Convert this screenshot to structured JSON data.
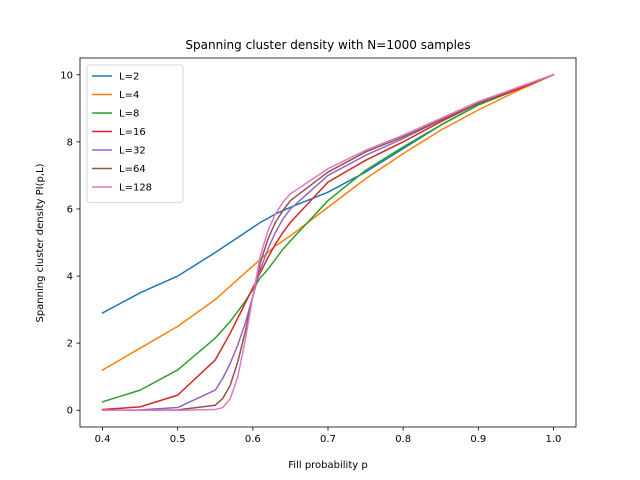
{
  "chart_data": {
    "type": "line",
    "title": "Spanning cluster density with N=1000 samples",
    "xlabel": "Fill probability p",
    "ylabel": "Spanning cluster density PI(p,L)",
    "xlim": [
      0.37,
      1.03
    ],
    "ylim": [
      -0.5,
      10.5
    ],
    "xticks": [
      0.4,
      0.5,
      0.6,
      0.7,
      0.8,
      0.9,
      1.0
    ],
    "xtick_labels": [
      "0.4",
      "0.5",
      "0.6",
      "0.7",
      "0.8",
      "0.9",
      "1.0"
    ],
    "yticks": [
      0,
      2,
      4,
      6,
      8,
      10
    ],
    "ytick_labels": [
      "0",
      "2",
      "4",
      "6",
      "8",
      "10"
    ],
    "grid": false,
    "legend_position": "top-left",
    "x": [
      0.4,
      0.45,
      0.5,
      0.55,
      0.56,
      0.57,
      0.58,
      0.59,
      0.6,
      0.61,
      0.62,
      0.63,
      0.64,
      0.65,
      0.7,
      0.75,
      0.8,
      0.85,
      0.9,
      0.95,
      1.0
    ],
    "series": [
      {
        "name": "L=2",
        "color": "#1f77b4",
        "values": [
          2.9,
          3.5,
          4.0,
          4.7,
          4.85,
          5.0,
          5.15,
          5.3,
          5.45,
          5.6,
          5.72,
          5.85,
          5.95,
          6.05,
          6.5,
          7.1,
          7.8,
          8.5,
          9.1,
          9.55,
          10.0
        ]
      },
      {
        "name": "L=4",
        "color": "#ff7f0e",
        "values": [
          1.2,
          1.85,
          2.5,
          3.3,
          3.5,
          3.7,
          3.9,
          4.1,
          4.3,
          4.5,
          4.7,
          4.9,
          5.05,
          5.2,
          6.05,
          6.9,
          7.65,
          8.35,
          8.95,
          9.5,
          10.0
        ]
      },
      {
        "name": "L=8",
        "color": "#2ca02c",
        "values": [
          0.25,
          0.6,
          1.2,
          2.15,
          2.4,
          2.65,
          2.95,
          3.25,
          3.6,
          3.95,
          4.2,
          4.5,
          4.8,
          5.05,
          6.25,
          7.15,
          7.85,
          8.5,
          9.1,
          9.55,
          10.0
        ]
      },
      {
        "name": "L=16",
        "color": "#d62728",
        "values": [
          0.02,
          0.1,
          0.45,
          1.5,
          1.9,
          2.3,
          2.75,
          3.2,
          3.65,
          4.1,
          4.55,
          4.95,
          5.3,
          5.6,
          6.8,
          7.45,
          8.0,
          8.6,
          9.15,
          9.55,
          10.0
        ]
      },
      {
        "name": "L=32",
        "color": "#9467bd",
        "values": [
          0.0,
          0.01,
          0.08,
          0.6,
          0.95,
          1.4,
          1.95,
          2.6,
          3.4,
          4.2,
          4.8,
          5.3,
          5.7,
          6.0,
          7.0,
          7.6,
          8.1,
          8.65,
          9.15,
          9.6,
          10.0
        ]
      },
      {
        "name": "L=64",
        "color": "#8c564b",
        "values": [
          0.0,
          0.0,
          0.01,
          0.15,
          0.35,
          0.75,
          1.45,
          2.35,
          3.4,
          4.4,
          5.1,
          5.6,
          5.95,
          6.25,
          7.1,
          7.7,
          8.15,
          8.65,
          9.15,
          9.6,
          10.0
        ]
      },
      {
        "name": "L=128",
        "color": "#e377c2",
        "values": [
          0.0,
          0.0,
          0.0,
          0.02,
          0.08,
          0.35,
          1.0,
          2.1,
          3.4,
          4.6,
          5.35,
          5.85,
          6.2,
          6.45,
          7.2,
          7.75,
          8.2,
          8.7,
          9.2,
          9.6,
          10.0
        ]
      }
    ]
  }
}
